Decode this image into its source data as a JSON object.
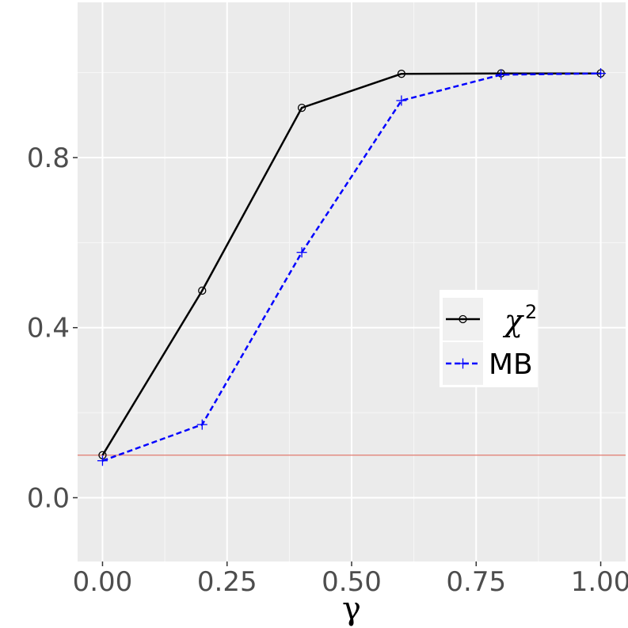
{
  "chart_data": {
    "type": "line",
    "xlabel": "γ",
    "ylabel": "",
    "title": "",
    "xlim": [
      -0.05,
      1.05
    ],
    "ylim": [
      -0.15,
      1.165
    ],
    "x_ticks": [
      0.0,
      0.25,
      0.5,
      0.75,
      1.0
    ],
    "x_tick_labels": [
      "0.00",
      "0.25",
      "0.50",
      "0.75",
      "1.00"
    ],
    "y_ticks": [
      0.0,
      0.4,
      0.8
    ],
    "y_tick_labels": [
      "0.0",
      "0.4",
      "0.8"
    ],
    "grid": true,
    "legend_position": "right-middle",
    "reference_line": {
      "y": 0.1,
      "color": "#e07a6f"
    },
    "series": [
      {
        "name": "χ2",
        "legend_base": "χ",
        "legend_sup": "2",
        "color": "#000000",
        "linestyle": "solid",
        "marker": "circle",
        "x": [
          0.0,
          0.2,
          0.4,
          0.6,
          0.8,
          1.0
        ],
        "y": [
          0.1,
          0.487,
          0.917,
          0.997,
          0.998,
          0.998
        ]
      },
      {
        "name": "MB",
        "color": "#0000ff",
        "linestyle": "dashed",
        "marker": "plus",
        "x": [
          0.0,
          0.2,
          0.4,
          0.6,
          0.8,
          1.0
        ],
        "y": [
          0.087,
          0.172,
          0.577,
          0.934,
          0.995,
          0.998
        ]
      }
    ]
  }
}
